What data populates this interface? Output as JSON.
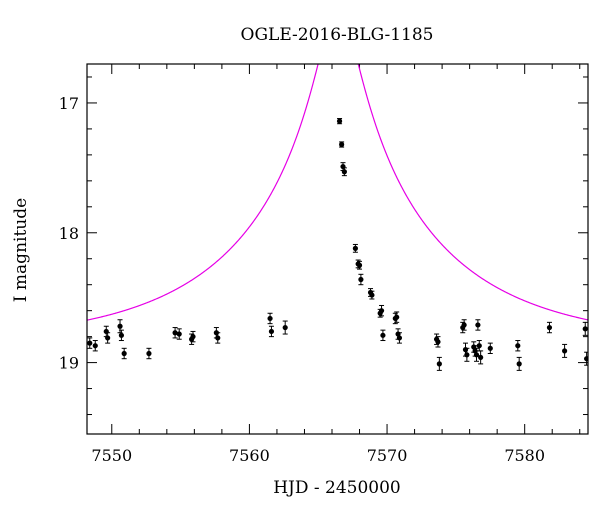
{
  "chart_data": {
    "type": "scatter",
    "title": "OGLE-2016-BLG-1185",
    "xlabel": "HJD - 2450000",
    "ylabel": "I magnitude",
    "xlim": [
      7548.2,
      7584.6
    ],
    "ylim": [
      19.55,
      16.7
    ],
    "y_inverted": true,
    "x_ticks": [
      7550,
      7560,
      7570,
      7580
    ],
    "y_ticks": [
      17,
      18,
      19
    ],
    "grid": false,
    "colors": {
      "data": "#000000",
      "model": "#e600e6",
      "frame": "#000000"
    },
    "model": {
      "name": "",
      "t0": 7566.45,
      "u0": 0.09,
      "tE": 14.0,
      "baseline_mag": 18.86
    },
    "series": [
      {
        "name": "",
        "x": [
          7548.4,
          7548.8,
          7549.6,
          7549.7,
          7550.6,
          7550.7,
          7550.9,
          7552.7,
          7554.6,
          7554.9,
          7555.8,
          7555.9,
          7557.6,
          7557.7,
          7561.5,
          7561.6,
          7562.6,
          7566.55,
          7566.7,
          7566.8,
          7566.9,
          7567.7,
          7567.9,
          7568.0,
          7568.1,
          7568.8,
          7568.9,
          7569.5,
          7569.6,
          7569.7,
          7570.6,
          7570.7,
          7570.8,
          7570.9,
          7573.6,
          7573.7,
          7573.8,
          7575.5,
          7575.6,
          7575.7,
          7575.8,
          7576.3,
          7576.4,
          7576.5,
          7576.6,
          7576.7,
          7576.8,
          7577.5,
          7579.5,
          7579.6,
          7581.8,
          7582.9,
          7584.4,
          7584.5
        ],
        "y": [
          18.85,
          18.87,
          18.76,
          18.81,
          18.72,
          18.79,
          18.93,
          18.93,
          18.77,
          18.78,
          18.82,
          18.8,
          18.77,
          18.81,
          18.66,
          18.76,
          18.73,
          17.14,
          17.32,
          17.49,
          17.53,
          18.12,
          18.24,
          18.25,
          18.36,
          18.46,
          18.48,
          18.62,
          18.6,
          18.79,
          18.66,
          18.65,
          18.78,
          18.81,
          18.82,
          18.84,
          19.01,
          18.73,
          18.71,
          18.9,
          18.94,
          18.88,
          18.91,
          18.94,
          18.71,
          18.87,
          18.96,
          18.89,
          18.87,
          19.01,
          18.73,
          18.91,
          18.74,
          18.97
        ],
        "err": [
          0.04,
          0.04,
          0.04,
          0.04,
          0.05,
          0.04,
          0.04,
          0.04,
          0.04,
          0.04,
          0.04,
          0.04,
          0.04,
          0.04,
          0.04,
          0.04,
          0.05,
          0.02,
          0.02,
          0.03,
          0.03,
          0.03,
          0.03,
          0.03,
          0.04,
          0.03,
          0.03,
          0.03,
          0.04,
          0.04,
          0.04,
          0.04,
          0.04,
          0.04,
          0.04,
          0.04,
          0.05,
          0.04,
          0.04,
          0.05,
          0.05,
          0.04,
          0.04,
          0.05,
          0.04,
          0.04,
          0.05,
          0.04,
          0.04,
          0.05,
          0.04,
          0.05,
          0.05,
          0.05
        ]
      }
    ]
  }
}
